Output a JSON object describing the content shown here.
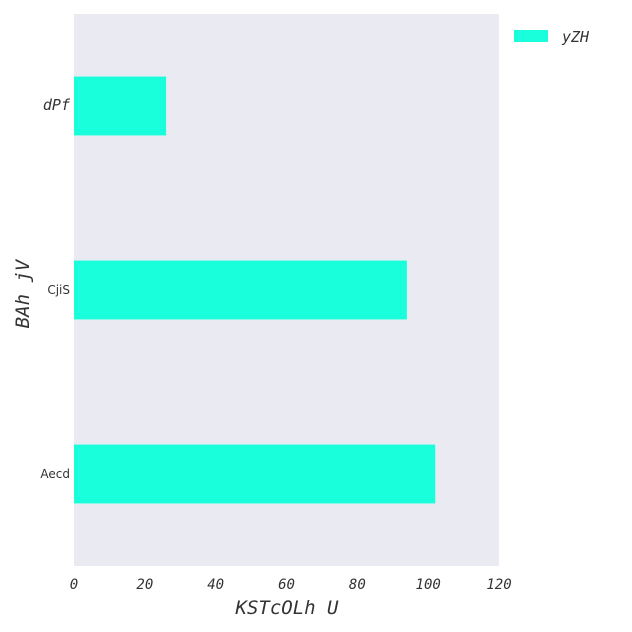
{
  "chart_data": {
    "type": "bar",
    "orientation": "horizontal",
    "categories": [
      "dPf",
      "CjiS",
      "Aecd"
    ],
    "series": [
      {
        "name": "yZH",
        "values": [
          26,
          94,
          102
        ],
        "color": "#19ffdc"
      }
    ],
    "xlabel": "KSTcOLh U",
    "ylabel": "BAh jV",
    "xlim": [
      0,
      120
    ],
    "xticks": [
      "0",
      "20",
      "40",
      "60",
      "80",
      "100",
      "120"
    ],
    "grid": false,
    "legend": "top-right outside plot",
    "plot_background": "#e9eaf2"
  }
}
